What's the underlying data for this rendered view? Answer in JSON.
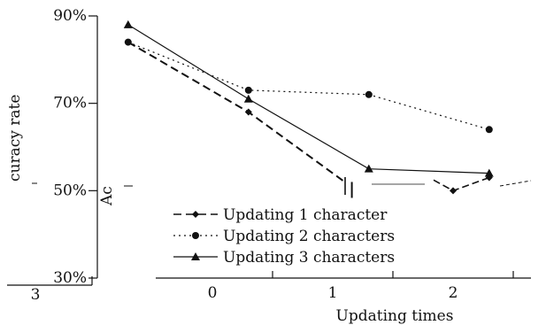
{
  "chart_data": {
    "type": "line",
    "xlabel": "Updating times",
    "ylabel": "Accuracy rate",
    "ylabel_visible_fragments": [
      "curacy rate",
      "Ac"
    ],
    "y_ticks": [
      "90%",
      "70%",
      "50%",
      "30%"
    ],
    "y_tick_values": [
      90,
      70,
      50,
      30
    ],
    "ylim": [
      30,
      90
    ],
    "x_ticks": [
      "0",
      "1",
      "2"
    ],
    "x_ticks_extra": [
      "3"
    ],
    "grid": false,
    "legend_position": "bottom-left",
    "series": [
      {
        "name": "Updating 1 character",
        "marker": "diamond",
        "line": "dashed",
        "x": [
          -0.7,
          0.3,
          1.1
        ],
        "y": [
          84,
          68,
          52
        ],
        "tail": {
          "x": [
            2.0,
            2.3
          ],
          "y": [
            50,
            53
          ]
        }
      },
      {
        "name": "Updating 2 characters",
        "marker": "circle",
        "line": "dotted",
        "x": [
          -0.7,
          0.3,
          1.3,
          2.3
        ],
        "y": [
          84,
          73,
          72,
          64
        ]
      },
      {
        "name": "Updating 3 characters",
        "marker": "triangle",
        "line": "solid",
        "x": [
          -0.7,
          0.3,
          1.3,
          2.3
        ],
        "y": [
          88,
          71,
          55,
          54
        ]
      }
    ]
  },
  "colors": {
    "ink": "#111111",
    "background": "#ffffff"
  }
}
